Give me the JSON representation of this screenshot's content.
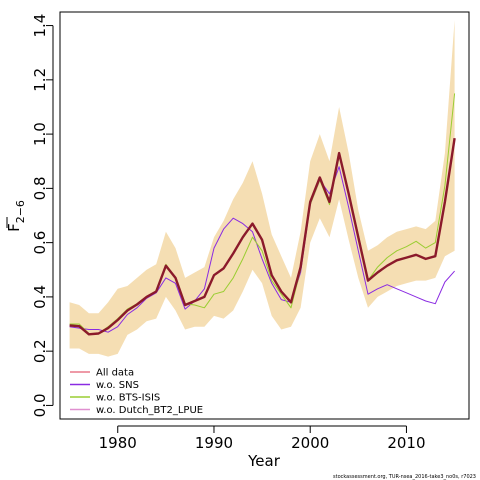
{
  "chart_data": {
    "type": "line",
    "title": "",
    "xlabel": "Year",
    "ylabel_main": "F",
    "ylabel_sub": "2−6",
    "xlim": [
      1974,
      2016.5
    ],
    "ylim": [
      -0.05,
      1.45
    ],
    "x_ticks": [
      1980,
      1990,
      2000,
      2010
    ],
    "y_ticks": [
      0.0,
      0.2,
      0.4,
      0.6,
      0.8,
      1.0,
      1.2,
      1.4
    ],
    "y_tick_labels": [
      "0.0",
      "0.2",
      "0.4",
      "0.6",
      "0.8",
      "1.0",
      "1.2",
      "1.4"
    ],
    "grid": false,
    "legend_position": "bottom-left",
    "footer": "stockassessment.org, TUR-nsea_2016-take3_no0s, r7023",
    "band": {
      "color": "#f5deb3",
      "x": [
        1975,
        1976,
        1977,
        1978,
        1979,
        1980,
        1981,
        1982,
        1983,
        1984,
        1985,
        1986,
        1987,
        1988,
        1989,
        1990,
        1991,
        1992,
        1993,
        1994,
        1995,
        1996,
        1997,
        1998,
        1999,
        2000,
        2001,
        2002,
        2003,
        2004,
        2005,
        2006,
        2007,
        2008,
        2009,
        2010,
        2011,
        2012,
        2013,
        2014,
        2015
      ],
      "upper": [
        0.38,
        0.37,
        0.34,
        0.34,
        0.38,
        0.43,
        0.44,
        0.47,
        0.5,
        0.52,
        0.64,
        0.58,
        0.47,
        0.49,
        0.51,
        0.62,
        0.68,
        0.76,
        0.82,
        0.9,
        0.78,
        0.63,
        0.55,
        0.47,
        0.64,
        0.9,
        1.0,
        0.9,
        1.1,
        0.93,
        0.72,
        0.57,
        0.59,
        0.62,
        0.64,
        0.65,
        0.66,
        0.65,
        0.68,
        0.93,
        1.42
      ],
      "lower": [
        0.21,
        0.21,
        0.19,
        0.19,
        0.18,
        0.19,
        0.26,
        0.28,
        0.31,
        0.32,
        0.4,
        0.35,
        0.28,
        0.29,
        0.29,
        0.33,
        0.32,
        0.35,
        0.42,
        0.5,
        0.45,
        0.33,
        0.28,
        0.29,
        0.36,
        0.6,
        0.69,
        0.62,
        0.76,
        0.61,
        0.47,
        0.36,
        0.4,
        0.42,
        0.44,
        0.45,
        0.46,
        0.46,
        0.47,
        0.55,
        0.57
      ]
    },
    "x": [
      1975,
      1976,
      1977,
      1978,
      1979,
      1980,
      1981,
      1982,
      1983,
      1984,
      1985,
      1986,
      1987,
      1988,
      1989,
      1990,
      1991,
      1992,
      1993,
      1994,
      1995,
      1996,
      1997,
      1998,
      1999,
      2000,
      2001,
      2002,
      2003,
      2004,
      2005,
      2006,
      2007,
      2008,
      2009,
      2010,
      2011,
      2012,
      2013,
      2014,
      2015
    ],
    "series": [
      {
        "name": "All data",
        "color": "#8b1a2b",
        "width": 2.4,
        "legend_color": "#e8798a",
        "values": [
          0.295,
          0.292,
          0.262,
          0.265,
          0.285,
          0.315,
          0.35,
          0.372,
          0.4,
          0.42,
          0.515,
          0.47,
          0.37,
          0.385,
          0.4,
          0.48,
          0.505,
          0.56,
          0.62,
          0.67,
          0.61,
          0.48,
          0.42,
          0.38,
          0.51,
          0.75,
          0.84,
          0.75,
          0.93,
          0.78,
          0.62,
          0.46,
          0.49,
          0.515,
          0.535,
          0.545,
          0.555,
          0.54,
          0.55,
          0.75,
          0.985
        ]
      },
      {
        "name": "w.o. SNS",
        "color": "#8a2be2",
        "width": 1,
        "legend_color": "#8a2be2",
        "values": [
          0.29,
          0.285,
          0.28,
          0.28,
          0.27,
          0.29,
          0.335,
          0.36,
          0.395,
          0.415,
          0.47,
          0.45,
          0.355,
          0.385,
          0.43,
          0.58,
          0.65,
          0.69,
          0.67,
          0.64,
          0.54,
          0.45,
          0.39,
          0.38,
          0.49,
          0.74,
          0.83,
          0.78,
          0.88,
          0.73,
          0.57,
          0.41,
          0.43,
          0.445,
          0.43,
          0.415,
          0.4,
          0.385,
          0.375,
          0.455,
          0.495
        ]
      },
      {
        "name": "w.o. BTS-ISIS",
        "color": "#9acd32",
        "width": 1,
        "legend_color": "#9acd32",
        "values": [
          0.3,
          0.3,
          0.265,
          0.265,
          0.29,
          0.32,
          0.355,
          0.375,
          0.4,
          0.42,
          0.52,
          0.47,
          0.375,
          0.37,
          0.36,
          0.41,
          0.42,
          0.47,
          0.54,
          0.62,
          0.57,
          0.46,
          0.41,
          0.36,
          0.5,
          0.74,
          0.83,
          0.74,
          0.92,
          0.78,
          0.63,
          0.46,
          0.51,
          0.545,
          0.57,
          0.585,
          0.605,
          0.58,
          0.6,
          0.81,
          1.15
        ]
      },
      {
        "name": "w.o. Dutch_BT2_LPUE",
        "color": "#e090d0",
        "width": 1,
        "legend_color": "#e090d0",
        "values": [
          0.295,
          0.29,
          0.262,
          0.265,
          0.285,
          0.315,
          0.35,
          0.372,
          0.4,
          0.42,
          0.515,
          0.47,
          0.37,
          0.385,
          0.4,
          0.48,
          0.505,
          0.56,
          0.62,
          0.67,
          0.61,
          0.48,
          0.42,
          0.38,
          0.51,
          0.75,
          0.84,
          0.75,
          0.93,
          0.78,
          0.62,
          0.46,
          0.49,
          0.515,
          0.535,
          0.545,
          0.555,
          0.54,
          0.55,
          0.75,
          0.985
        ]
      }
    ]
  }
}
